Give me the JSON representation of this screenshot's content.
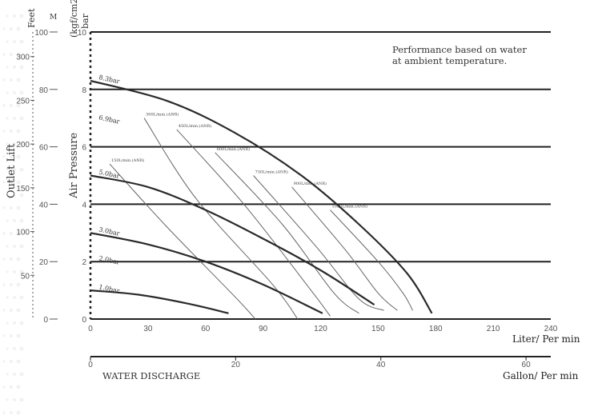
{
  "chart_data": {
    "type": "line",
    "title": "",
    "note": [
      "Performance based on water",
      "at ambient temperature."
    ],
    "x_axis": {
      "label": "Liter/ Per min",
      "range": [
        0,
        240
      ],
      "ticks": [
        0,
        30,
        60,
        90,
        120,
        150,
        180,
        210,
        240
      ]
    },
    "x2_axis": {
      "label": "Gallon/ Per min",
      "caption": "WATER DISCHARGE",
      "ticks": [
        0,
        20,
        40,
        60
      ]
    },
    "y_axis": {
      "label": "Air Pressure",
      "unit_header": "(kgf/cm2)",
      "unit_header2": "bar",
      "range": [
        0,
        10
      ],
      "ticks": [
        0,
        2,
        4,
        6,
        8,
        10
      ]
    },
    "outlet_lift_axis": {
      "label": "Outlet Lift",
      "unit_feet": "Feet",
      "unit_m": "M",
      "m_ticks": [
        0,
        20,
        40,
        60,
        80,
        100
      ],
      "feet_ticks": [
        50,
        100,
        150,
        200,
        250,
        300
      ]
    },
    "pressure_curves": [
      {
        "label": "8.3bar",
        "points": [
          [
            0,
            8.3
          ],
          [
            40,
            7.6
          ],
          [
            75,
            6.5
          ],
          [
            110,
            5.0
          ],
          [
            140,
            3.3
          ],
          [
            165,
            1.6
          ],
          [
            178,
            0.2
          ]
        ]
      },
      {
        "label": "6.9bar",
        "points": [
          [
            0,
            6.9
          ]
        ]
      },
      {
        "label": "5.0bar",
        "points": [
          [
            0,
            5.0
          ],
          [
            30,
            4.6
          ],
          [
            60,
            3.8
          ],
          [
            90,
            2.8
          ],
          [
            120,
            1.7
          ],
          [
            148,
            0.5
          ]
        ]
      },
      {
        "label": "3.0bar",
        "points": [
          [
            0,
            3.0
          ],
          [
            30,
            2.6
          ],
          [
            60,
            2.0
          ],
          [
            90,
            1.2
          ],
          [
            121,
            0.2
          ]
        ]
      },
      {
        "label": "2.0bar",
        "points": [
          [
            0,
            2.0
          ]
        ]
      },
      {
        "label": "1.0bar",
        "points": [
          [
            0,
            1.0
          ],
          [
            25,
            0.85
          ],
          [
            50,
            0.55
          ],
          [
            72,
            0.2
          ]
        ]
      }
    ],
    "flow_curves": [
      {
        "label": "150L/min.(ANR)",
        "points": [
          [
            10,
            5.4
          ],
          [
            40,
            3.2
          ],
          [
            75,
            0.8
          ],
          [
            86,
            0
          ]
        ]
      },
      {
        "label": "300L/min.(ANR)",
        "points": [
          [
            28,
            7.0
          ],
          [
            55,
            4.2
          ],
          [
            95,
            1.2
          ],
          [
            108,
            0
          ]
        ]
      },
      {
        "label": "450L/min.(ANR)",
        "points": [
          [
            45,
            6.6
          ],
          [
            80,
            4.0
          ],
          [
            115,
            1.0
          ],
          [
            125,
            0.1
          ]
        ]
      },
      {
        "label": "600L/min.(ANR)",
        "points": [
          [
            65,
            5.8
          ],
          [
            100,
            3.3
          ],
          [
            127,
            0.9
          ],
          [
            140,
            0.2
          ]
        ]
      },
      {
        "label": "750L/min.(ANR)",
        "points": [
          [
            85,
            5.0
          ],
          [
            118,
            2.5
          ],
          [
            140,
            0.7
          ],
          [
            153,
            0.3
          ]
        ]
      },
      {
        "label": "900L/min.(ANR)",
        "points": [
          [
            105,
            4.6
          ],
          [
            133,
            2.4
          ],
          [
            150,
            0.9
          ],
          [
            160,
            0.3
          ]
        ]
      },
      {
        "label": "1050L/min.(ANR)",
        "points": [
          [
            125,
            3.8
          ],
          [
            150,
            2.0
          ],
          [
            163,
            0.9
          ],
          [
            168,
            0.3
          ]
        ]
      }
    ]
  }
}
